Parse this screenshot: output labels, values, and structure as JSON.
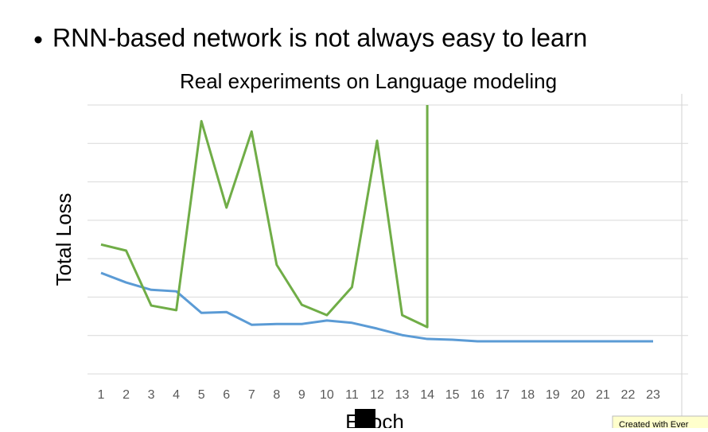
{
  "slide": {
    "heading": "RNN-based network is not always easy to learn"
  },
  "chart_data": {
    "type": "line",
    "title": "Real experiments on Language modeling",
    "y_label": "Total Loss",
    "x_label": "Epoch",
    "xlim": [
      1,
      23
    ],
    "xticks": [
      1,
      2,
      3,
      4,
      5,
      6,
      7,
      8,
      9,
      10,
      11,
      12,
      13,
      14,
      15,
      16,
      17,
      18,
      19,
      20,
      21,
      22,
      23
    ],
    "ylim": [
      0,
      7
    ],
    "yticks": [
      0,
      1,
      2,
      3,
      4,
      5,
      6,
      7
    ],
    "grid": true,
    "series": [
      {
        "color": "#5b9bd5",
        "x": [
          1,
          2,
          3,
          4,
          5,
          6,
          7,
          8,
          9,
          10,
          11,
          12,
          13,
          14,
          15,
          16,
          17,
          18,
          19,
          20,
          21,
          22,
          23
        ],
        "values": [
          2.63,
          2.38,
          2.19,
          2.15,
          1.59,
          1.61,
          1.28,
          1.3,
          1.3,
          1.39,
          1.33,
          1.18,
          1.01,
          0.91,
          0.89,
          0.85,
          0.85,
          0.85,
          0.85,
          0.85,
          0.85,
          0.85,
          0.85
        ]
      },
      {
        "color": "#70ad47",
        "x": [
          1,
          2,
          3,
          4,
          5,
          6,
          7,
          8,
          9,
          10,
          11,
          12,
          13,
          14,
          14
        ],
        "values": [
          3.37,
          3.21,
          1.78,
          1.66,
          6.58,
          4.33,
          6.31,
          2.84,
          1.8,
          1.53,
          2.26,
          6.07,
          1.53,
          1.22,
          7
        ]
      }
    ]
  },
  "badge": "Created with Ever"
}
